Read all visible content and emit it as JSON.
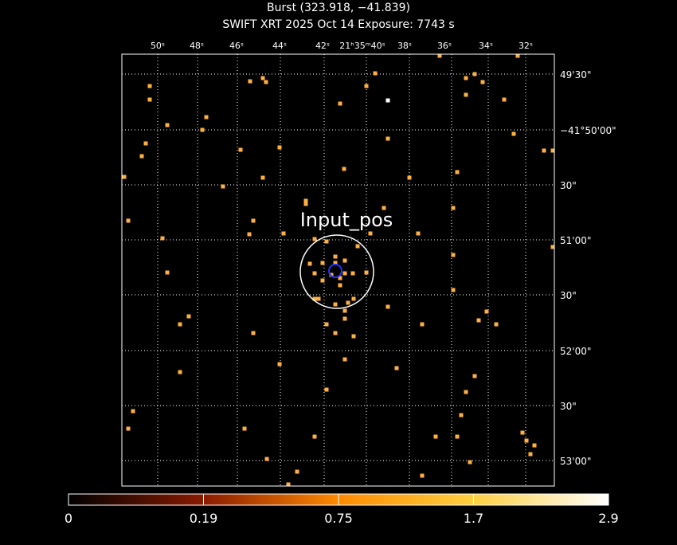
{
  "header": {
    "title": "Burst (323.918, −41.839)",
    "subtitle": "SWIFT XRT   2025 Oct 14    Exposure: 7743 s"
  },
  "axes": {
    "ra_labels": [
      "50ˢ",
      "48ˢ",
      "46ˢ",
      "44ˢ",
      "42ˢ",
      "21ʰ35ᵐ40ˢ",
      "38ˢ",
      "36ˢ",
      "34ˢ",
      "32ˢ"
    ],
    "dec_labels": [
      "49'30\"",
      "−41°50'00\"",
      "30\"",
      "51'00\"",
      "30\"",
      "52'00\"",
      "30\"",
      "53'00\""
    ]
  },
  "annotation": "Input_pos",
  "colorbar": {
    "ticks": [
      0,
      0.19,
      0.75,
      1.7,
      2.9
    ]
  }
}
